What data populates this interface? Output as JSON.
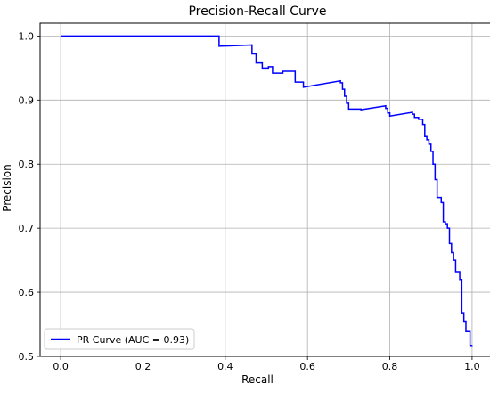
{
  "chart_data": {
    "type": "line",
    "title": "Precision-Recall Curve",
    "xlabel": "Recall",
    "ylabel": "Precision",
    "xlim": [
      -0.05,
      1.05
    ],
    "ylim": [
      0.5,
      1.02
    ],
    "xticks": [
      0.0,
      0.2,
      0.4,
      0.6,
      0.8,
      1.0
    ],
    "xtick_labels": [
      "0.0",
      "0.2",
      "0.4",
      "0.6",
      "0.8",
      "1.0"
    ],
    "yticks": [
      0.5,
      0.6,
      0.7,
      0.8,
      0.9,
      1.0
    ],
    "ytick_labels": [
      "0.5",
      "0.6",
      "0.7",
      "0.8",
      "0.9",
      "1.0"
    ],
    "grid": true,
    "legend_position": "lower-left",
    "series": [
      {
        "name": "PR Curve (AUC = 0.93)",
        "color": "#0000ff",
        "step": true,
        "x": [
          0.0,
          0.385,
          0.385,
          0.465,
          0.465,
          0.475,
          0.475,
          0.49,
          0.49,
          0.505,
          0.505,
          0.515,
          0.515,
          0.54,
          0.54,
          0.57,
          0.57,
          0.59,
          0.59,
          0.68,
          0.68,
          0.685,
          0.685,
          0.69,
          0.69,
          0.695,
          0.695,
          0.7,
          0.7,
          0.73,
          0.73,
          0.79,
          0.79,
          0.795,
          0.795,
          0.8,
          0.8,
          0.855,
          0.855,
          0.86,
          0.86,
          0.87,
          0.87,
          0.88,
          0.88,
          0.885,
          0.885,
          0.89,
          0.89,
          0.895,
          0.895,
          0.9,
          0.9,
          0.905,
          0.905,
          0.91,
          0.91,
          0.915,
          0.915,
          0.925,
          0.925,
          0.93,
          0.93,
          0.935,
          0.935,
          0.94,
          0.94,
          0.945,
          0.945,
          0.95,
          0.95,
          0.955,
          0.955,
          0.96,
          0.96,
          0.97,
          0.97,
          0.975,
          0.975,
          0.98,
          0.98,
          0.985,
          0.985,
          0.995,
          0.995,
          1.0,
          1.0
        ],
        "y": [
          1.0,
          1.0,
          0.984,
          0.986,
          0.972,
          0.972,
          0.958,
          0.958,
          0.95,
          0.95,
          0.952,
          0.952,
          0.942,
          0.942,
          0.945,
          0.945,
          0.928,
          0.928,
          0.92,
          0.93,
          0.927,
          0.927,
          0.917,
          0.917,
          0.906,
          0.906,
          0.895,
          0.895,
          0.886,
          0.886,
          0.885,
          0.891,
          0.887,
          0.887,
          0.88,
          0.88,
          0.875,
          0.881,
          0.878,
          0.878,
          0.873,
          0.873,
          0.87,
          0.87,
          0.862,
          0.862,
          0.843,
          0.843,
          0.838,
          0.838,
          0.831,
          0.831,
          0.82,
          0.82,
          0.8,
          0.8,
          0.776,
          0.776,
          0.748,
          0.748,
          0.74,
          0.74,
          0.71,
          0.71,
          0.707,
          0.707,
          0.7,
          0.7,
          0.676,
          0.676,
          0.662,
          0.662,
          0.65,
          0.65,
          0.632,
          0.632,
          0.62,
          0.62,
          0.568,
          0.568,
          0.555,
          0.555,
          0.54,
          0.54,
          0.517,
          0.517,
          0.5172
        ]
      }
    ]
  }
}
